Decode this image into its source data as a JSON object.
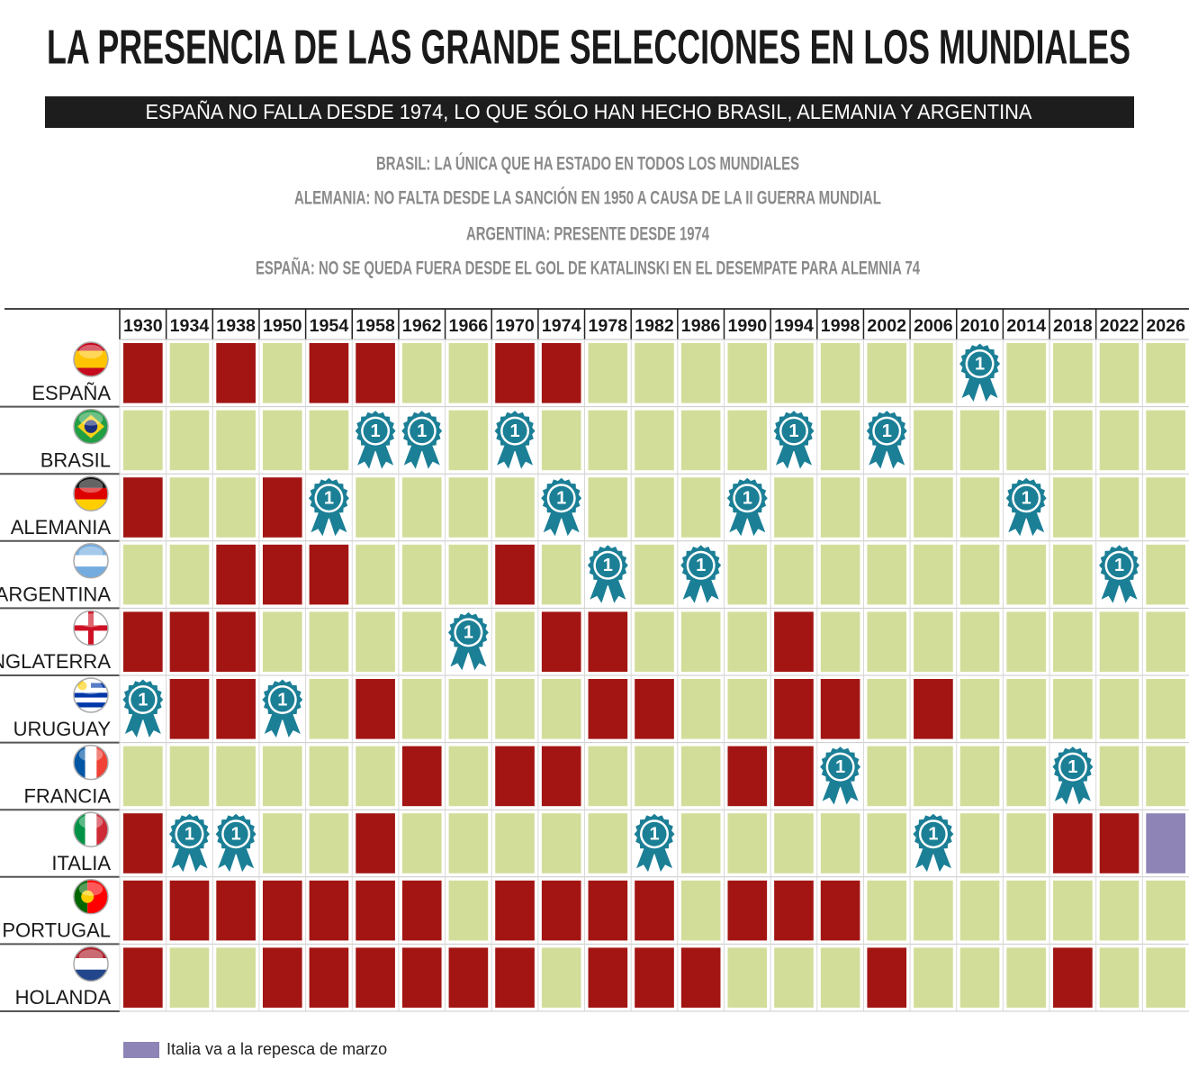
{
  "header": {
    "title": "LA PRESENCIA DE LAS GRANDE SELECCIONES EN LOS MUNDIALES",
    "subtitle": "ESPAÑA NO FALLA DESDE 1974, LO QUE SÓLO HAN HECHO BRASIL, ALEMANIA Y ARGENTINA",
    "notes": [
      "BRASIL: LA ÚNICA QUE HA ESTADO EN TODOS LOS MUNDIALES",
      "ALEMANIA: NO FALTA DESDE LA SANCIÓN EN 1950  A CAUSA DE LA II GUERRA MUNDIAL",
      "ARGENTINA: PRESENTE DESDE 1974",
      "ESPAÑA: NO SE QUEDA FUERA DESDE EL GOL DE KATALINSKI EN EL DESEMPATE PARA ALEMNIA 74"
    ]
  },
  "table": {
    "columns": [
      1930,
      1934,
      1938,
      1950,
      1954,
      1958,
      1962,
      1966,
      1970,
      1974,
      1978,
      1982,
      1986,
      1990,
      1994,
      1998,
      2002,
      2006,
      2010,
      2014,
      2018,
      2022,
      2026
    ],
    "status_colors": {
      "R": "#a21513",
      "G": "#d3dd9a",
      "C": "#ffffff"
    },
    "medal_label": "1",
    "rows": [
      {
        "team": "ESPAÑA",
        "cells": [
          "R",
          "G",
          "R",
          "G",
          "R",
          "R",
          "G",
          "G",
          "R",
          "R",
          "G",
          "G",
          "G",
          "G",
          "G",
          "G",
          "G",
          "G",
          "C",
          "G",
          "G",
          "G",
          "G"
        ]
      },
      {
        "team": "BRASIL",
        "cells": [
          "G",
          "G",
          "G",
          "G",
          "G",
          "C",
          "C",
          "G",
          "C",
          "G",
          "G",
          "G",
          "G",
          "G",
          "C",
          "G",
          "C",
          "G",
          "G",
          "G",
          "G",
          "G",
          "G"
        ]
      },
      {
        "team": "ALEMANIA",
        "cells": [
          "R",
          "G",
          "G",
          "R",
          "C",
          "G",
          "G",
          "G",
          "G",
          "C",
          "G",
          "G",
          "G",
          "C",
          "G",
          "G",
          "G",
          "G",
          "G",
          "C",
          "G",
          "G",
          "G"
        ]
      },
      {
        "team": "ARGENTINA",
        "cells": [
          "G",
          "G",
          "R",
          "R",
          "R",
          "G",
          "G",
          "G",
          "R",
          "G",
          "C",
          "G",
          "C",
          "G",
          "G",
          "G",
          "G",
          "G",
          "G",
          "G",
          "G",
          "C",
          "G"
        ]
      },
      {
        "team": "INGLATERRA",
        "cells": [
          "R",
          "R",
          "R",
          "G",
          "G",
          "G",
          "G",
          "C",
          "G",
          "R",
          "R",
          "G",
          "G",
          "G",
          "R",
          "G",
          "G",
          "G",
          "G",
          "G",
          "G",
          "G",
          "G"
        ]
      },
      {
        "team": "URUGUAY",
        "cells": [
          "C",
          "R",
          "R",
          "C",
          "G",
          "R",
          "G",
          "G",
          "G",
          "G",
          "R",
          "R",
          "G",
          "G",
          "R",
          "R",
          "G",
          "R",
          "G",
          "G",
          "G",
          "G",
          "G"
        ]
      },
      {
        "team": "FRANCIA",
        "cells": [
          "G",
          "G",
          "G",
          "G",
          "G",
          "G",
          "R",
          "G",
          "R",
          "R",
          "G",
          "G",
          "G",
          "R",
          "R",
          "C",
          "G",
          "G",
          "G",
          "G",
          "C",
          "G",
          "G"
        ]
      },
      {
        "team": "ITALIA",
        "cells": [
          "R",
          "C",
          "C",
          "G",
          "G",
          "R",
          "G",
          "G",
          "G",
          "G",
          "G",
          "C",
          "G",
          "G",
          "G",
          "G",
          "G",
          "C",
          "G",
          "G",
          "R",
          "R",
          "P"
        ]
      },
      {
        "team": "PORTUGAL",
        "cells": [
          "R",
          "R",
          "R",
          "R",
          "R",
          "R",
          "R",
          "G",
          "R",
          "R",
          "R",
          "R",
          "G",
          "R",
          "R",
          "R",
          "G",
          "G",
          "G",
          "G",
          "G",
          "G",
          "G"
        ]
      },
      {
        "team": "HOLANDA",
        "cells": [
          "R",
          "G",
          "G",
          "R",
          "R",
          "R",
          "R",
          "R",
          "R",
          "G",
          "R",
          "R",
          "R",
          "G",
          "G",
          "G",
          "R",
          "G",
          "G",
          "G",
          "R",
          "G",
          "G"
        ]
      }
    ]
  },
  "legend": {
    "label": "Italia va a la repesca de marzo",
    "color": "#8e84b5"
  }
}
